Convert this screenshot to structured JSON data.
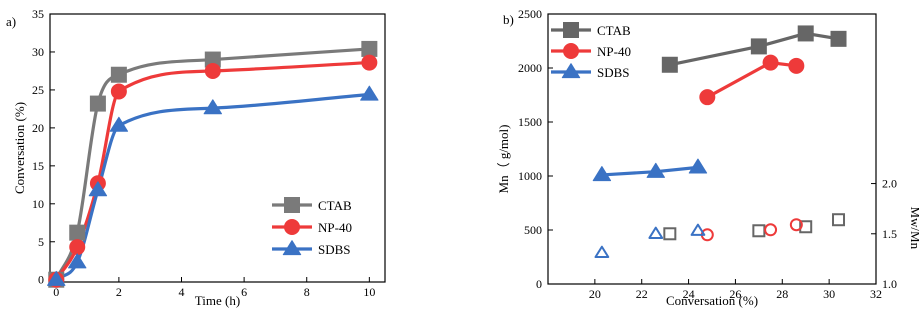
{
  "chart_data": [
    {
      "type": "line",
      "panel_label": "a)",
      "title": "",
      "xlabel": "Time (h)",
      "ylabel": "Conversation (%)",
      "xlim": [
        -0.2,
        10.5
      ],
      "ylim": [
        -0.3,
        35
      ],
      "xticks": [
        0,
        2,
        4,
        6,
        8,
        10
      ],
      "yticks": [
        0,
        5,
        10,
        15,
        20,
        25,
        30,
        35
      ],
      "grid": false,
      "legend_placement": "bottom-right",
      "series": [
        {
          "name": "CTAB",
          "color": "#7a7a7a",
          "marker": "square",
          "x": [
            0,
            0.67,
            1.33,
            2,
            5,
            10
          ],
          "y": [
            0,
            6.2,
            23.2,
            27.0,
            29.0,
            30.4
          ]
        },
        {
          "name": "NP-40",
          "color": "#ee3a3a",
          "marker": "circle",
          "x": [
            0,
            0.67,
            1.33,
            2,
            5,
            10
          ],
          "y": [
            0,
            4.3,
            12.7,
            24.8,
            27.5,
            28.6
          ]
        },
        {
          "name": "SDBS",
          "color": "#3a72c4",
          "marker": "triangle",
          "x": [
            0,
            0.67,
            1.33,
            2,
            5,
            10
          ],
          "y": [
            0,
            2.3,
            11.8,
            20.3,
            22.6,
            24.4
          ]
        }
      ]
    },
    {
      "type": "scatter",
      "panel_label": "b)",
      "title": "",
      "xlabel": "Conversation (%)",
      "ylabel": "Mn（ g/mol)",
      "y2label": "Mw/Mn",
      "xlim": [
        18,
        32
      ],
      "ylim": [
        0,
        2500
      ],
      "y2lim": [
        1.0,
        2.0
      ],
      "y2_range": [
        1.0,
        2.0
      ],
      "y2_ticks_labels": [
        "1.0",
        "1.5",
        "2.0"
      ],
      "xticks": [
        20,
        22,
        24,
        26,
        28,
        30,
        32
      ],
      "yticks": [
        0,
        500,
        1000,
        1500,
        2000,
        2500
      ],
      "grid": false,
      "legend_placement": "top-left",
      "series": [
        {
          "name": "CTAB",
          "color": "#666666",
          "marker": "square",
          "x": [
            23.2,
            27.0,
            29.0,
            30.4
          ],
          "mn": [
            2030,
            2200,
            2320,
            2270
          ],
          "pdi": [
            1.5,
            1.53,
            1.57,
            1.64
          ]
        },
        {
          "name": "NP-40",
          "color": "#ee3a3a",
          "marker": "circle",
          "x": [
            24.8,
            27.5,
            28.6
          ],
          "mn": [
            1730,
            2050,
            2020
          ],
          "pdi": [
            1.49,
            1.54,
            1.59
          ]
        },
        {
          "name": "SDBS",
          "color": "#3a72c4",
          "marker": "triangle",
          "x": [
            20.3,
            22.6,
            24.4
          ],
          "mn": [
            1010,
            1040,
            1080
          ],
          "pdi": [
            1.31,
            1.5,
            1.53
          ]
        }
      ]
    }
  ]
}
